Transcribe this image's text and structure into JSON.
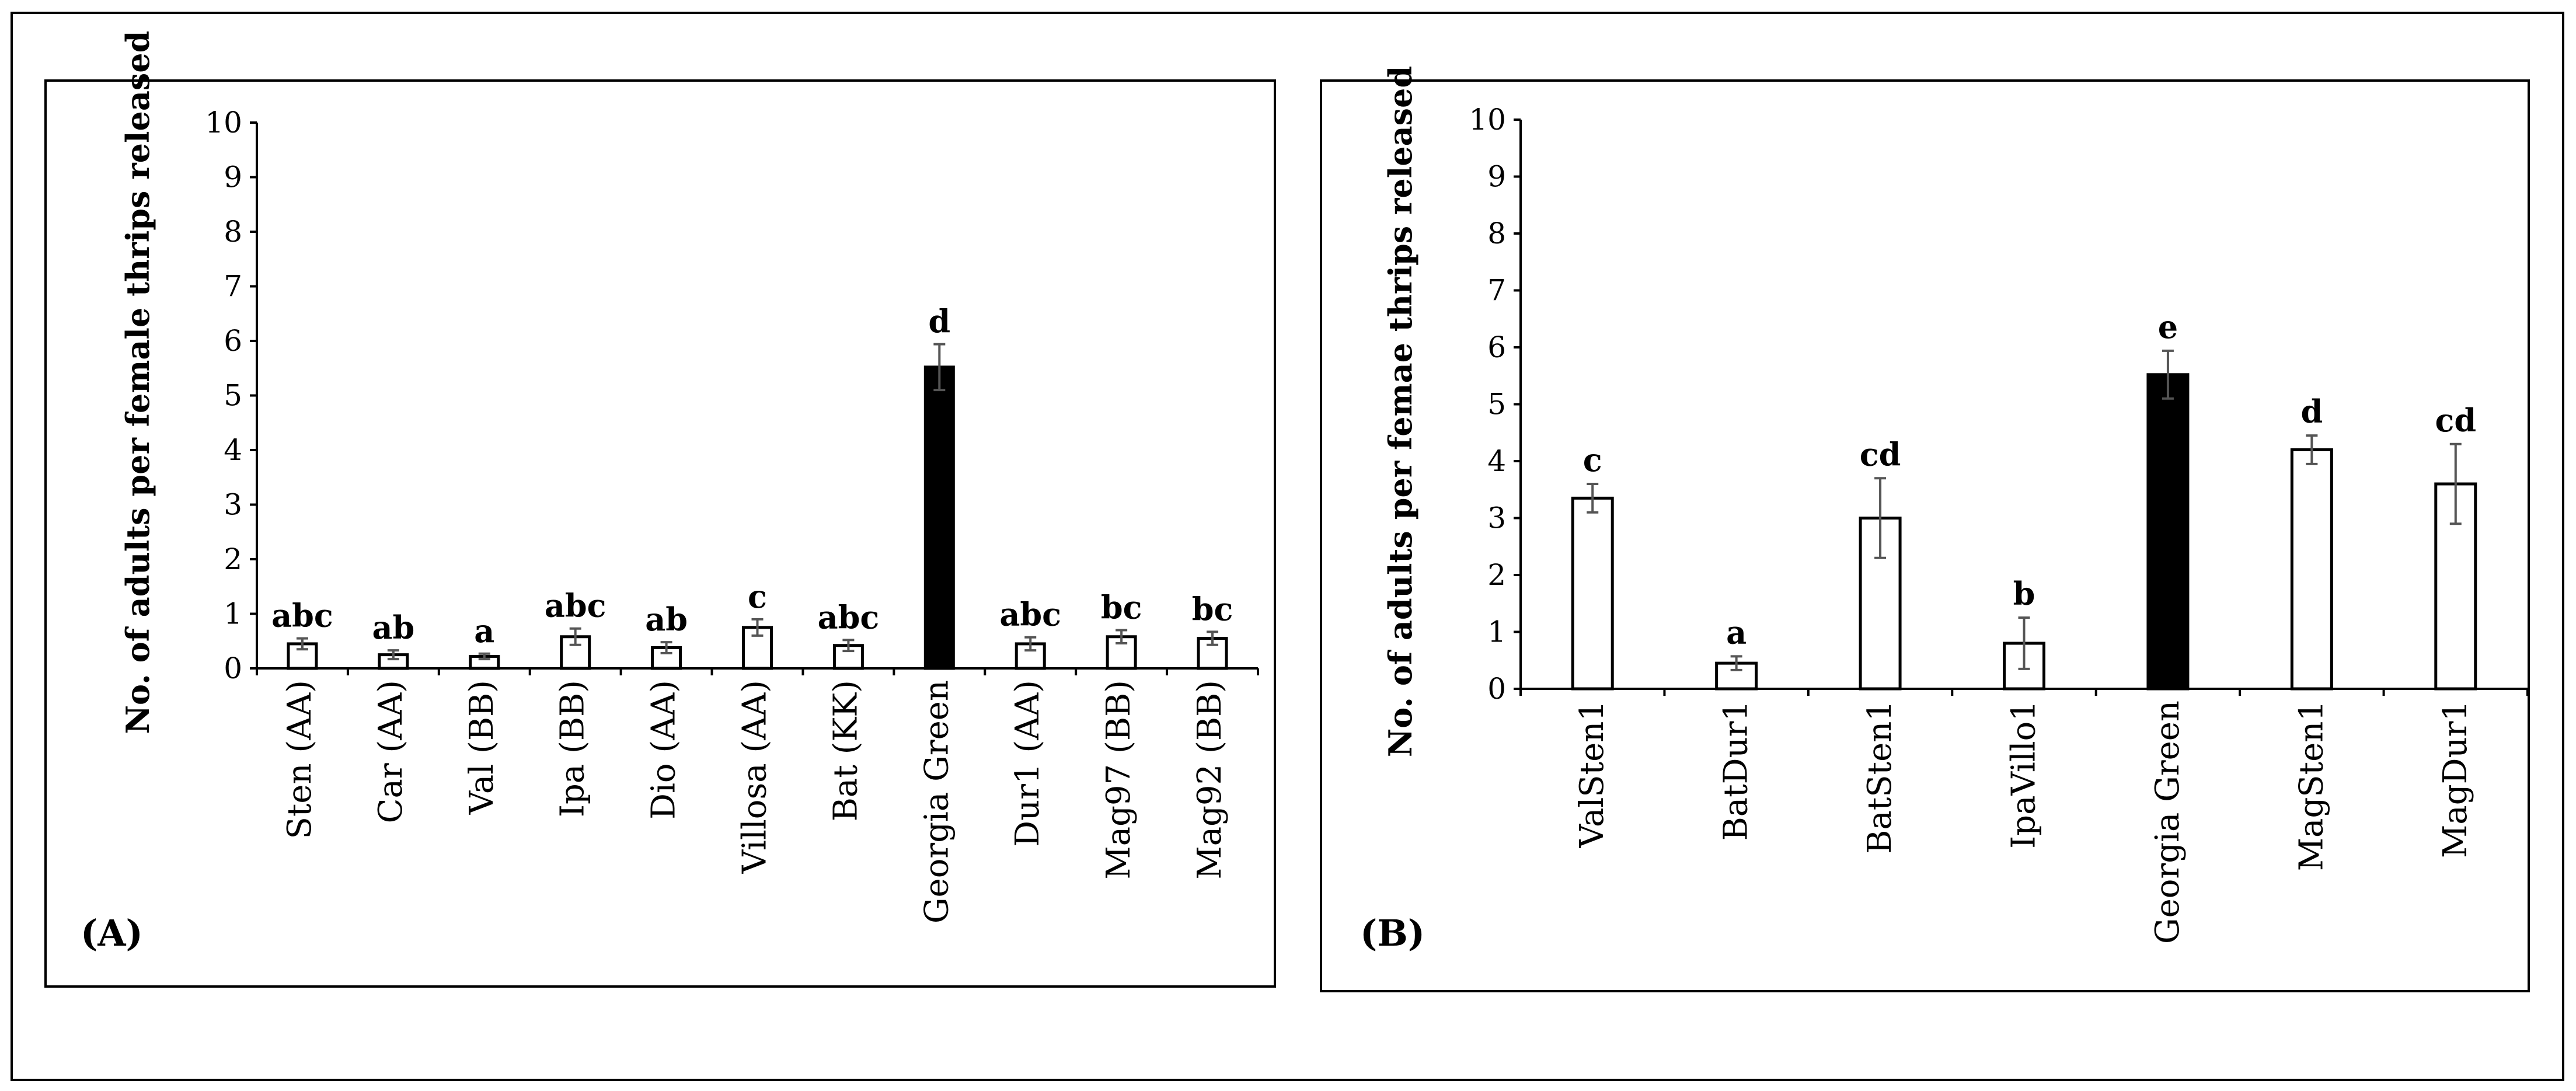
{
  "charts": [
    {
      "panel_label": "(A)",
      "ylabel": "No. of adults  per female thrips released",
      "ylim": [
        0,
        10
      ],
      "yticks": [
        "0",
        "1",
        "2",
        "3",
        "4",
        "5",
        "6",
        "7",
        "8",
        "9",
        "10"
      ]
    },
    {
      "panel_label": "(B)",
      "ylabel": "No. of adults  per femae thrips released",
      "ylim": [
        0,
        10
      ],
      "yticks": [
        "0",
        "1",
        "2",
        "3",
        "4",
        "5",
        "6",
        "7",
        "8",
        "9",
        "10"
      ]
    }
  ],
  "colors": {
    "filled_bar": "#000000",
    "open_bar": "#ffffff",
    "error_bar": "#555555"
  },
  "chart_data": [
    {
      "type": "bar",
      "panel": "(A)",
      "title": "",
      "xlabel": "",
      "ylabel": "No. of adults  per female thrips released",
      "ylim": [
        0,
        10
      ],
      "grid": false,
      "categories": [
        "Sten (AA)",
        "Car (AA)",
        "Val (BB)",
        "Ipa (BB)",
        "Dio (AA)",
        "Villosa (AA)",
        "Bat (KK)",
        "Georgia Green",
        "Dur1 (AA)",
        "Mag97 (BB)",
        "Mag92 (BB)"
      ],
      "values": [
        0.45,
        0.25,
        0.22,
        0.58,
        0.38,
        0.75,
        0.42,
        5.52,
        0.45,
        0.58,
        0.55
      ],
      "errors": [
        0.1,
        0.08,
        0.05,
        0.15,
        0.1,
        0.15,
        0.1,
        0.42,
        0.12,
        0.12,
        0.12
      ],
      "significance": [
        "abc",
        "ab",
        "a",
        "abc",
        "ab",
        "c",
        "abc",
        "d",
        "abc",
        "bc",
        "bc"
      ],
      "filled": [
        false,
        false,
        false,
        false,
        false,
        false,
        false,
        true,
        false,
        false,
        false
      ]
    },
    {
      "type": "bar",
      "panel": "(B)",
      "title": "",
      "xlabel": "",
      "ylabel": "No. of adults  per femae thrips released",
      "ylim": [
        0,
        10
      ],
      "grid": false,
      "categories": [
        "ValSten1",
        "BatDur1",
        "BatSten1",
        "IpaVillo1",
        "Georgia Green",
        "MagSten1",
        "MagDur1"
      ],
      "values": [
        3.35,
        0.45,
        3.0,
        0.8,
        5.52,
        4.2,
        3.6
      ],
      "errors": [
        0.25,
        0.12,
        0.7,
        0.45,
        0.42,
        0.25,
        0.7
      ],
      "significance": [
        "c",
        "a",
        "cd",
        "b",
        "e",
        "d",
        "cd"
      ],
      "filled": [
        false,
        false,
        false,
        false,
        true,
        false,
        false
      ]
    }
  ]
}
